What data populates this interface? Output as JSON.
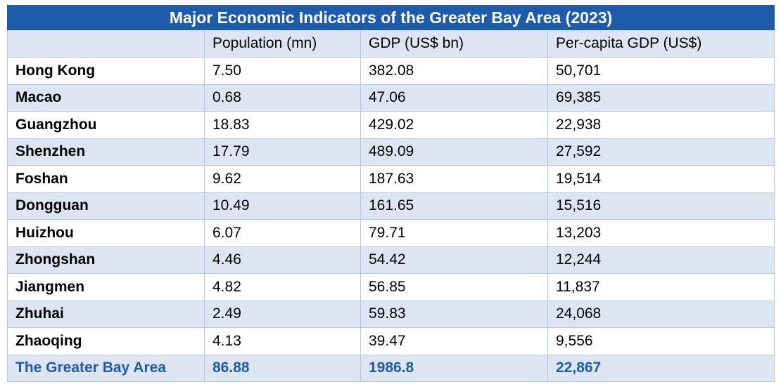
{
  "table": {
    "title": "Major Economic Indicators of the Greater Bay Area (2023)",
    "headers": [
      "",
      "Population (mn)",
      "GDP (US$ bn)",
      "Per-capita GDP (US$)"
    ],
    "rows": [
      {
        "city": "Hong Kong",
        "population": "7.50",
        "gdp": "382.08",
        "per_capita": "50,701"
      },
      {
        "city": "Macao",
        "population": "0.68",
        "gdp": "47.06",
        "per_capita": "69,385"
      },
      {
        "city": "Guangzhou",
        "population": "18.83",
        "gdp": "429.02",
        "per_capita": "22,938"
      },
      {
        "city": "Shenzhen",
        "population": "17.79",
        "gdp": "489.09",
        "per_capita": "27,592"
      },
      {
        "city": "Foshan",
        "population": "9.62",
        "gdp": "187.63",
        "per_capita": "19,514"
      },
      {
        "city": "Dongguan",
        "population": "10.49",
        "gdp": "161.65",
        "per_capita": "15,516"
      },
      {
        "city": "Huizhou",
        "population": "6.07",
        "gdp": "79.71",
        "per_capita": "13,203"
      },
      {
        "city": "Zhongshan",
        "population": "4.46",
        "gdp": "54.42",
        "per_capita": "12,244"
      },
      {
        "city": "Jiangmen",
        "population": "4.82",
        "gdp": "56.85",
        "per_capita": "11,837"
      },
      {
        "city": "Zhuhai",
        "population": "2.49",
        "gdp": "59.83",
        "per_capita": "24,068"
      },
      {
        "city": "Zhaoqing",
        "population": "4.13",
        "gdp": "39.47",
        "per_capita": "9,556"
      }
    ],
    "total": {
      "city": "The Greater Bay Area",
      "population": "86.88",
      "gdp": "1986.8",
      "per_capita": "22,867"
    }
  },
  "colors": {
    "title_bg": "#1f5ba8",
    "title_text": "#ffffff",
    "header_bg": "#dde5f3",
    "band_bg": "#dde5f3",
    "total_text": "#1f5ba8",
    "grid": "#b8c8e4"
  }
}
